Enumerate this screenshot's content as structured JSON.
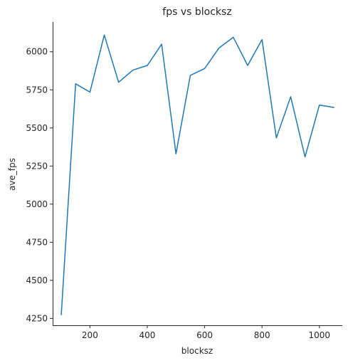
{
  "chart_data": {
    "type": "line",
    "title": "fps vs blocksz",
    "xlabel": "blocksz",
    "ylabel": "ave_fps",
    "x": [
      100,
      150,
      200,
      250,
      300,
      350,
      400,
      450,
      500,
      550,
      600,
      650,
      700,
      750,
      800,
      850,
      900,
      950,
      1000,
      1050
    ],
    "series": [
      {
        "values": [
          4275,
          5790,
          5735,
          6110,
          5800,
          5880,
          5910,
          6050,
          5330,
          5845,
          5890,
          6025,
          6095,
          5910,
          6080,
          5435,
          5705,
          5310,
          5650,
          5635
        ],
        "color": "#1f77b4"
      }
    ],
    "xlim": [
      70,
      1080
    ],
    "ylim": [
      4205,
      6195
    ],
    "xticks": [
      200,
      400,
      600,
      800,
      1000
    ],
    "yticks": [
      4250,
      4500,
      4750,
      5000,
      5250,
      5500,
      5750,
      6000
    ],
    "xtick_labels": [
      "200",
      "400",
      "600",
      "800",
      "1000"
    ],
    "ytick_labels": [
      "4250",
      "4500",
      "4750",
      "5000",
      "5250",
      "5500",
      "5750",
      "6000"
    ],
    "grid": false,
    "legend": "none"
  }
}
